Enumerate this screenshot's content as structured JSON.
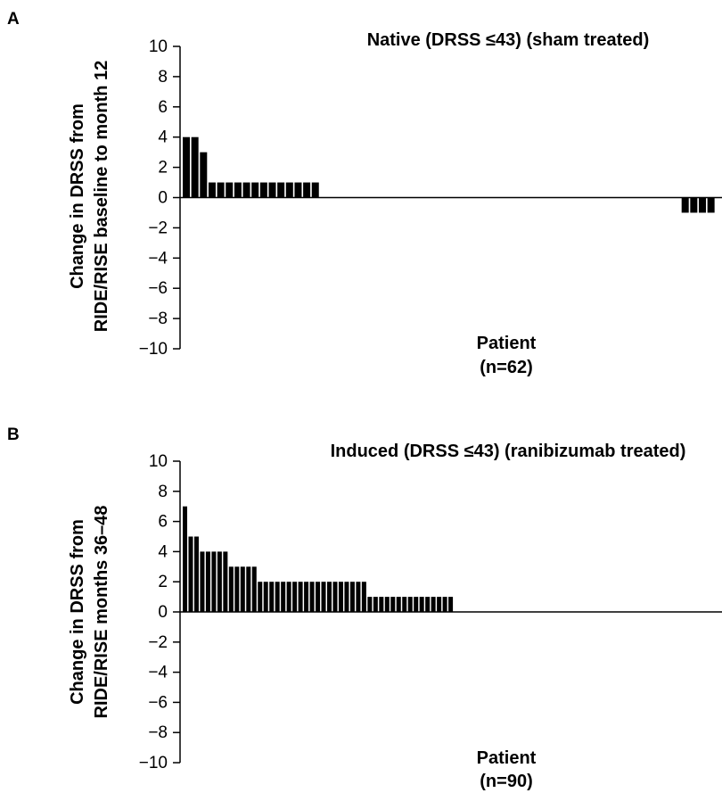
{
  "chart_data": [
    {
      "type": "bar",
      "panel_label": "A",
      "title": "Native (DRSS ≤43) (sham treated)",
      "ylabel_line1": "Change in DRSS from",
      "ylabel_line2": "RIDE/RISE baseline to month 12",
      "xlabel_line1": "Patient",
      "xlabel_line2": "(n=62)",
      "ylim": [
        -10,
        10
      ],
      "yticks": [
        10,
        8,
        6,
        4,
        2,
        0,
        -2,
        -4,
        -6,
        -8,
        -10
      ],
      "ytick_labels": [
        "10",
        "8",
        "6",
        "4",
        "2",
        "0",
        "−2",
        "−4",
        "−6",
        "−8",
        "−10"
      ],
      "n_patients": 62,
      "values": [
        4,
        4,
        3,
        1,
        1,
        1,
        1,
        1,
        1,
        1,
        1,
        1,
        1,
        1,
        1,
        1,
        0,
        0,
        0,
        0,
        0,
        0,
        0,
        0,
        0,
        0,
        0,
        0,
        0,
        0,
        0,
        0,
        0,
        0,
        0,
        0,
        0,
        0,
        0,
        0,
        0,
        0,
        0,
        0,
        0,
        0,
        0,
        0,
        0,
        0,
        0,
        0,
        0,
        0,
        0,
        0,
        0,
        0,
        -1,
        -1,
        -1,
        -1
      ]
    },
    {
      "type": "bar",
      "panel_label": "B",
      "title": "Induced (DRSS ≤43) (ranibizumab treated)",
      "ylabel_line1": "Change in DRSS from",
      "ylabel_line2": "RIDE/RISE months 36–48",
      "xlabel_line1": "Patient",
      "xlabel_line2": "(n=90)",
      "ylim": [
        -10,
        10
      ],
      "yticks": [
        10,
        8,
        6,
        4,
        2,
        0,
        -2,
        -4,
        -6,
        -8,
        -10
      ],
      "ytick_labels": [
        "10",
        "8",
        "6",
        "4",
        "2",
        "0",
        "−2",
        "−4",
        "−6",
        "−8",
        "−10"
      ],
      "n_patients": 90,
      "values": [
        7,
        5,
        5,
        4,
        4,
        4,
        4,
        4,
        3,
        3,
        3,
        3,
        3,
        2,
        2,
        2,
        2,
        2,
        2,
        2,
        2,
        2,
        2,
        2,
        2,
        2,
        2,
        2,
        2,
        2,
        2,
        2,
        1,
        1,
        1,
        1,
        1,
        1,
        1,
        1,
        1,
        1,
        1,
        1,
        1,
        1,
        1,
        0,
        0,
        0,
        0,
        0,
        0,
        0,
        0,
        0,
        0,
        0,
        0,
        0,
        0,
        0,
        0,
        0,
        0,
        0,
        0,
        0,
        0,
        0,
        0,
        0,
        0,
        0,
        0,
        0,
        0,
        0,
        0,
        0,
        0,
        0,
        0,
        0,
        0,
        0,
        0,
        0,
        0,
        0
      ]
    }
  ],
  "colors": {
    "bar": "#000000",
    "axis": "#000000",
    "text": "#000000"
  }
}
